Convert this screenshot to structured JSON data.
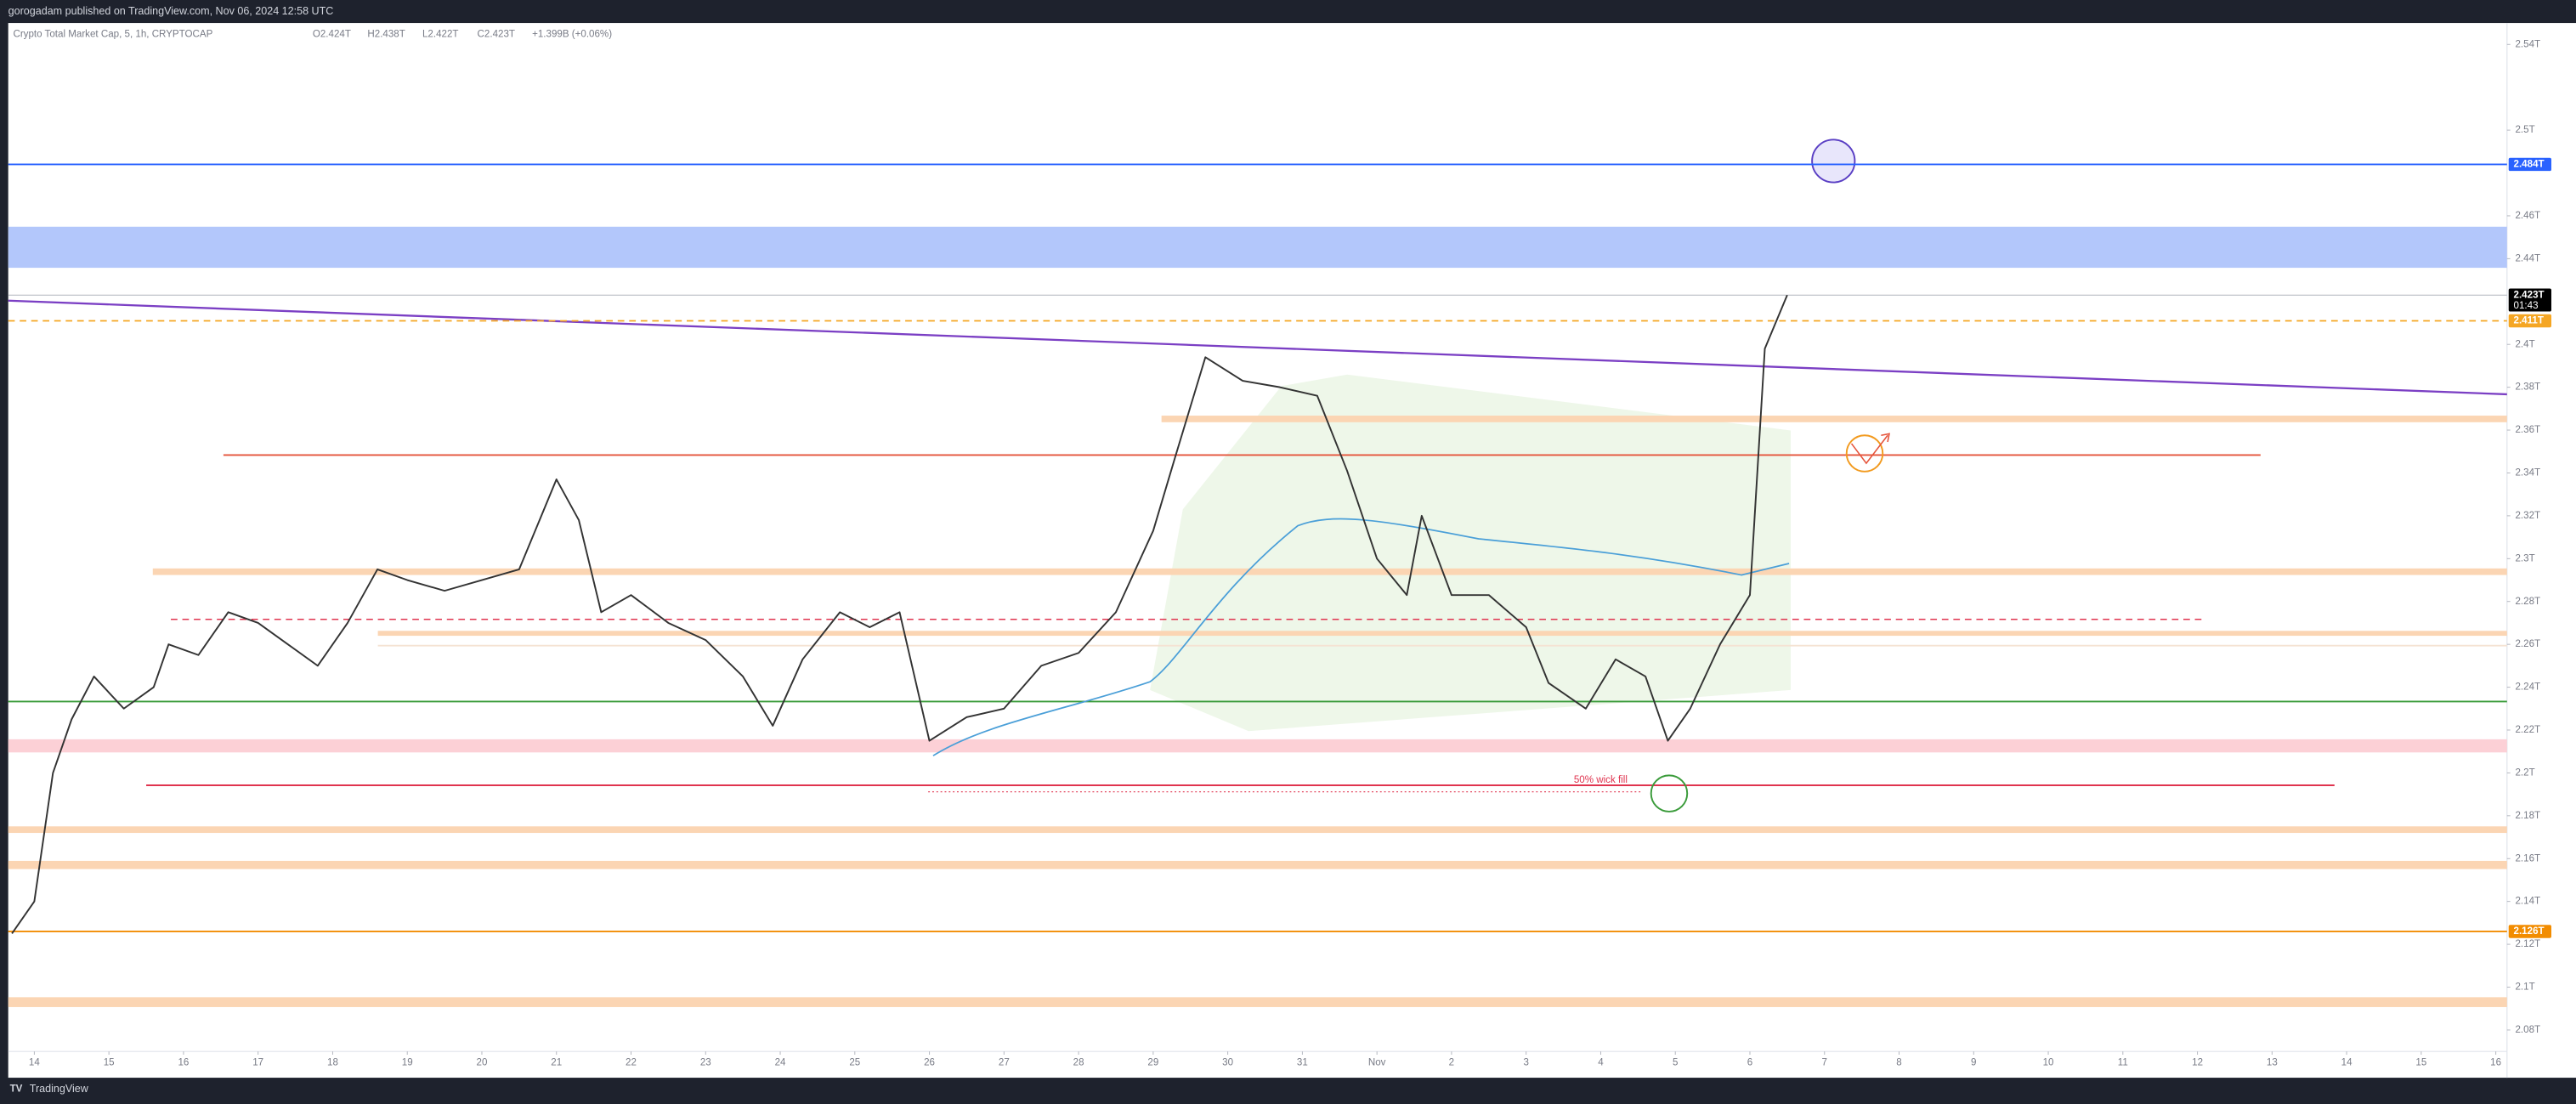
{
  "header": {
    "title": "gorogadam published on TradingView.com, Nov 06, 2024 12:58 UTC"
  },
  "footer": {
    "brand": "TradingView"
  },
  "chart_data": {
    "type": "line",
    "title": "Crypto Total Market Cap, 5, 1h, CRYPTOCAP",
    "legend_values": [
      "O2.424T",
      "H2.438T",
      "L2.422T",
      "C2.423T",
      "+1.399B (+0.06%)"
    ],
    "x": [
      -0.3,
      0,
      0.25,
      0.5,
      0.8,
      1.2,
      1.6,
      1.8,
      2.2,
      2.6,
      3.0,
      3.4,
      3.8,
      4.2,
      4.6,
      5.0,
      5.5,
      6.0,
      6.5,
      7.0,
      7.3,
      7.6,
      8.0,
      8.5,
      9.0,
      9.5,
      9.9,
      10.3,
      10.8,
      11.2,
      11.6,
      12.0,
      12.5,
      13.0,
      13.5,
      14.0,
      14.5,
      15.0,
      15.3,
      15.7,
      16.2,
      16.7,
      17.2,
      17.6,
      18.0,
      18.4,
      18.6,
      19.0,
      19.5,
      20.0,
      20.3,
      20.8,
      21.2,
      21.6,
      21.9,
      22.2,
      22.6,
      23.0,
      23.2,
      23.5
    ],
    "series": [
      {
        "color": "#333333",
        "values": [
          2.125,
          2.14,
          2.2,
          2.225,
          2.245,
          2.23,
          2.24,
          2.26,
          2.255,
          2.275,
          2.27,
          2.26,
          2.25,
          2.27,
          2.295,
          2.29,
          2.285,
          2.29,
          2.295,
          2.337,
          2.318,
          2.275,
          2.283,
          2.27,
          2.262,
          2.245,
          2.222,
          2.253,
          2.275,
          2.268,
          2.275,
          2.215,
          2.226,
          2.23,
          2.25,
          2.256,
          2.275,
          2.313,
          2.348,
          2.394,
          2.383,
          2.38,
          2.376,
          2.341,
          2.3,
          2.283,
          2.32,
          2.283,
          2.283,
          2.268,
          2.242,
          2.23,
          2.253,
          2.245,
          2.215,
          2.23,
          2.26,
          2.283,
          2.398,
          2.423
        ]
      }
    ],
    "xlim": [
      -0.35,
      33.15
    ],
    "ylim": [
      2.07,
      2.55
    ],
    "xticks": [
      {
        "value": 0,
        "label": "14"
      },
      {
        "value": 1,
        "label": "15"
      },
      {
        "value": 2,
        "label": "16"
      },
      {
        "value": 3,
        "label": "17"
      },
      {
        "value": 4,
        "label": "18"
      },
      {
        "value": 5,
        "label": "19"
      },
      {
        "value": 6,
        "label": "20"
      },
      {
        "value": 7,
        "label": "21"
      },
      {
        "value": 8,
        "label": "22"
      },
      {
        "value": 9,
        "label": "23"
      },
      {
        "value": 10,
        "label": "24"
      },
      {
        "value": 11,
        "label": "25"
      },
      {
        "value": 12,
        "label": "26"
      },
      {
        "value": 13,
        "label": "27"
      },
      {
        "value": 14,
        "label": "28"
      },
      {
        "value": 15,
        "label": "29"
      },
      {
        "value": 16,
        "label": "30"
      },
      {
        "value": 17,
        "label": "31"
      },
      {
        "value": 18,
        "label": "Nov"
      },
      {
        "value": 19,
        "label": "2"
      },
      {
        "value": 20,
        "label": "3"
      },
      {
        "value": 21,
        "label": "4"
      },
      {
        "value": 22,
        "label": "5"
      },
      {
        "value": 23,
        "label": "6"
      },
      {
        "value": 24,
        "label": "7"
      },
      {
        "value": 25,
        "label": "8"
      },
      {
        "value": 26,
        "label": "9"
      },
      {
        "value": 27,
        "label": "10"
      },
      {
        "value": 28,
        "label": "11"
      },
      {
        "value": 29,
        "label": "12"
      },
      {
        "value": 30,
        "label": "13"
      },
      {
        "value": 31,
        "label": "14"
      },
      {
        "value": 32,
        "label": "15"
      },
      {
        "value": 33,
        "label": "16"
      }
    ],
    "yticks": [
      {
        "value": 2.54,
        "label": "2.54T"
      },
      {
        "value": 2.5,
        "label": "2.5T"
      },
      {
        "value": 2.46,
        "label": "2.46T"
      },
      {
        "value": 2.44,
        "label": "2.44T"
      },
      {
        "value": 2.4,
        "label": "2.4T"
      },
      {
        "value": 2.38,
        "label": "2.38T"
      },
      {
        "value": 2.36,
        "label": "2.36T"
      },
      {
        "value": 2.34,
        "label": "2.34T"
      },
      {
        "value": 2.32,
        "label": "2.32T"
      },
      {
        "value": 2.3,
        "label": "2.3T"
      },
      {
        "value": 2.28,
        "label": "2.28T"
      },
      {
        "value": 2.26,
        "label": "2.26T"
      },
      {
        "value": 2.24,
        "label": "2.24T"
      },
      {
        "value": 2.22,
        "label": "2.22T"
      },
      {
        "value": 2.2,
        "label": "2.2T"
      },
      {
        "value": 2.18,
        "label": "2.18T"
      },
      {
        "value": 2.16,
        "label": "2.16T"
      },
      {
        "value": 2.14,
        "label": "2.14T"
      },
      {
        "value": 2.12,
        "label": "2.12T"
      },
      {
        "value": 2.1,
        "label": "2.1T"
      },
      {
        "value": 2.08,
        "label": "2.08T"
      }
    ],
    "price_labels": [
      {
        "value": 2.484,
        "label": "2.484T",
        "color": "#2962ff"
      },
      {
        "value": 2.423,
        "label": "2.423T",
        "color": "#000000",
        "countdown": "01:43"
      },
      {
        "value": 2.411,
        "label": "2.411T",
        "color": "#f5a623"
      },
      {
        "value": 2.126,
        "label": "2.126T",
        "color": "#f28c00"
      }
    ],
    "annotations": [
      {
        "text": "50% wick fill"
      }
    ]
  }
}
